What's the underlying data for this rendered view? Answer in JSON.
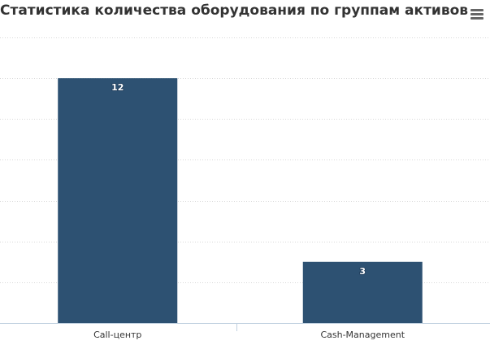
{
  "chart_data": {
    "type": "bar",
    "title": "Статистика количества оборудования по группам активов",
    "categories": [
      "Call-центр",
      "Cash-Management"
    ],
    "values": [
      12,
      3
    ],
    "xlabel": "",
    "ylabel": "",
    "ylim": [
      0,
      14
    ],
    "grid": true,
    "legend": "none",
    "bar_color": "#2d5172",
    "grid_color": "#d8d8d8",
    "axis_color": "#c0d0e0"
  },
  "menu": {
    "icon": "hamburger-menu-icon"
  }
}
